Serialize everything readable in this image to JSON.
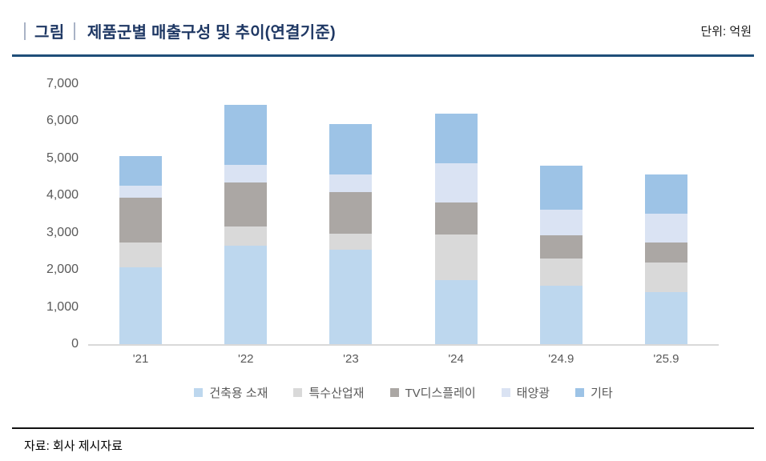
{
  "header": {
    "tag_label": "그림",
    "title": "제품군별 매출구성 및 추이(연결기준)",
    "unit_label": "단위: 억원"
  },
  "footer": {
    "source": "자료: 회사 제시자료"
  },
  "colors": {
    "title_navy": "#1f3864",
    "header_rule": "#1f4e79",
    "axis_text": "#595959",
    "axis_line": "#d9d9d9",
    "footer_rule": "#111111"
  },
  "chart_data": {
    "type": "bar",
    "stacked": true,
    "title": "제품군별 매출구성 및 추이(연결기준)",
    "unit": "억원",
    "grid": false,
    "legend_position": "bottom",
    "categories": [
      "'21",
      "'22",
      "'23",
      "'24",
      "'24.9",
      "'25.9"
    ],
    "series": [
      {
        "name": "건축용 소재",
        "color": "#bdd7ee",
        "values": [
          2060,
          2650,
          2540,
          1720,
          1580,
          1400
        ]
      },
      {
        "name": "특수산업재",
        "color": "#d9d9d9",
        "values": [
          670,
          510,
          430,
          1240,
          730,
          800
        ]
      },
      {
        "name": "TV디스플레이",
        "color": "#aba7a4",
        "values": [
          1220,
          1190,
          1130,
          850,
          630,
          530
        ]
      },
      {
        "name": "태양광",
        "color": "#dae3f3",
        "values": [
          320,
          480,
          460,
          1050,
          680,
          790
        ]
      },
      {
        "name": "기타",
        "color": "#9dc3e6",
        "values": [
          790,
          1610,
          1360,
          1340,
          1180,
          1040
        ]
      }
    ],
    "totals": [
      5060,
      6440,
      5920,
      6200,
      4800,
      4560
    ],
    "ylim": [
      0,
      7000
    ],
    "yticks": [
      0,
      1000,
      2000,
      3000,
      4000,
      5000,
      6000,
      7000
    ],
    "ytick_labels": [
      "0",
      "1,000",
      "2,000",
      "3,000",
      "4,000",
      "5,000",
      "6,000",
      "7,000"
    ]
  }
}
